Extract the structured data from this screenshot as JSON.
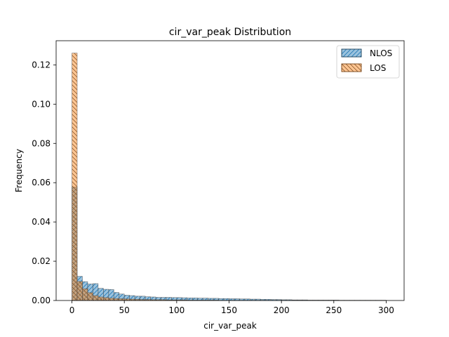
{
  "chart_data": {
    "type": "bar",
    "title": "cir_var_peak Distribution",
    "xlabel": "cir_var_peak",
    "ylabel": "Frequency",
    "xlim": [
      -15.1,
      317.1
    ],
    "ylim": [
      0,
      0.1323
    ],
    "xticks": [
      0,
      50,
      100,
      150,
      200,
      250,
      300
    ],
    "yticks": [
      0.0,
      0.02,
      0.04,
      0.06,
      0.08,
      0.1,
      0.12
    ],
    "xtick_labels": [
      "0",
      "50",
      "100",
      "150",
      "200",
      "250",
      "300"
    ],
    "ytick_labels": [
      "0.00",
      "0.02",
      "0.04",
      "0.06",
      "0.08",
      "0.10",
      "0.12"
    ],
    "bin_width": 5,
    "bin_start": 0,
    "legend_position": "top-right",
    "grid": false,
    "series": [
      {
        "name": "NLOS",
        "color": "#1f77b4",
        "hatch": "///",
        "values": [
          0.0578,
          0.0123,
          0.0096,
          0.0084,
          0.0086,
          0.0062,
          0.0057,
          0.0056,
          0.0041,
          0.0033,
          0.0027,
          0.0025,
          0.0022,
          0.0022,
          0.0019,
          0.0018,
          0.0016,
          0.0016,
          0.0016,
          0.0015,
          0.0015,
          0.0014,
          0.0013,
          0.0013,
          0.0012,
          0.0012,
          0.0011,
          0.0011,
          0.001,
          0.001,
          0.0009,
          0.0009,
          0.0008,
          0.0008,
          0.0007,
          0.0007,
          0.0006,
          0.0006,
          0.0005,
          0.0005,
          0.0004,
          0.0004,
          0.0003,
          0.0003,
          0.0003,
          0.0002,
          0.0002,
          0.0002,
          0.0002,
          0.0002,
          0.0002,
          0.0001,
          0.0001,
          0.0001,
          0.0001,
          0.0001,
          0.0001,
          0.0001,
          0.0001,
          0.0001
        ]
      },
      {
        "name": "LOS",
        "color": "#ff7f0e",
        "hatch": "\\\\\\",
        "values": [
          0.126,
          0.0097,
          0.006,
          0.004,
          0.0025,
          0.0018,
          0.0015,
          0.0012,
          0.001,
          0.0009,
          0.0008,
          0.0007,
          0.0006,
          0.0005,
          0.0005,
          0.0004,
          0.0004,
          0.0004,
          0.0003,
          0.0003,
          0.0003,
          0.0003,
          0.0002,
          0.0002,
          0.0002,
          0.0002,
          0.0002,
          0.0002,
          0.0001,
          0.0001,
          0.0001,
          0.0001,
          0.0001,
          0.0001,
          0.0001,
          0.0001,
          0.0001,
          0.0001,
          0.0001,
          0.0001,
          0.0001,
          0.0001,
          0.0001,
          0.0001,
          0.0001,
          0.0001,
          0.0001,
          0.0001,
          0.0001,
          0.0001,
          0.0001,
          0.0001,
          0.0001,
          0.0001,
          0.0001,
          0.0001,
          0.0001,
          0.0001,
          0.0001,
          0.0001
        ]
      }
    ]
  }
}
